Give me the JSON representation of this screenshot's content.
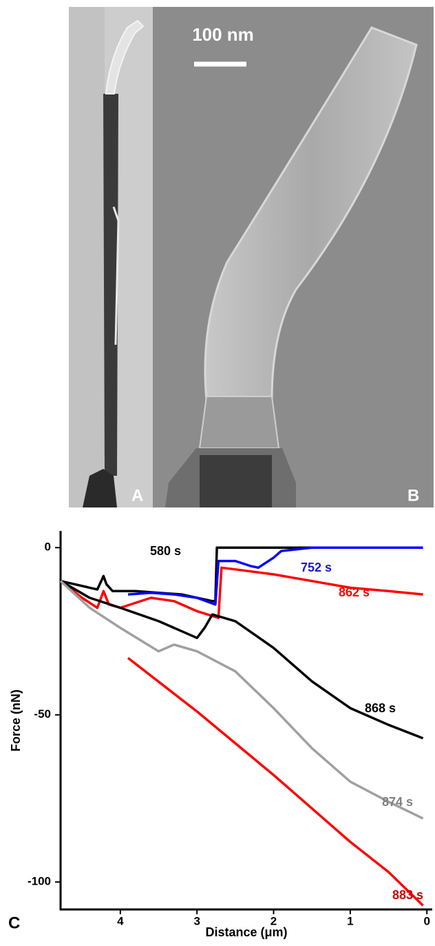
{
  "images": {
    "a_label": "A",
    "b_label": "B",
    "scale_bar": "100 nm"
  },
  "chart_data": {
    "type": "line",
    "panel_label": "C",
    "x_label": "Distance (μm)",
    "y_label": "Force (nN)",
    "xlim": [
      4.78,
      -0.07
    ],
    "ylim": [
      -108,
      5
    ],
    "xticks": [
      4,
      3,
      2,
      1,
      0
    ],
    "yticks": [
      0,
      -50,
      -100
    ],
    "series": [
      {
        "name": "580 s",
        "color": "#000000",
        "label_color": "#000000",
        "x": [
          4.78,
          4.3,
          4.22,
          4.18,
          4.1,
          3.8,
          3.5,
          3.2,
          3.0,
          2.8,
          2.76,
          2.74,
          2.5,
          2.0,
          1.5
        ],
        "values": [
          -10,
          -12.5,
          -8.5,
          -11,
          -13,
          -13,
          -13.5,
          -14,
          -15,
          -16,
          -16,
          0,
          0,
          0,
          0
        ]
      },
      {
        "name": "752 s",
        "color": "#0000ff",
        "label_color": "#1a1acc",
        "x": [
          3.9,
          3.6,
          3.3,
          3.0,
          2.76,
          2.72,
          2.5,
          2.3,
          2.2,
          2.0,
          1.9,
          1.5,
          1.0,
          0.5,
          0.05
        ],
        "values": [
          -14,
          -13.5,
          -14,
          -15,
          -17,
          -4,
          -4,
          -5.5,
          -6,
          -3,
          -1,
          0,
          0,
          0,
          0
        ]
      },
      {
        "name": "862 s",
        "color": "#ff0000",
        "label_color": "#ff0000",
        "x": [
          4.78,
          4.5,
          4.3,
          4.22,
          4.15,
          4.0,
          3.6,
          3.3,
          3.0,
          2.72,
          2.68,
          2.5,
          2.0,
          1.5,
          1.0,
          0.5,
          0.05
        ],
        "values": [
          -10,
          -15,
          -18,
          -13,
          -17,
          -18,
          -15,
          -16,
          -19,
          -21,
          -6,
          -6.5,
          -8,
          -10,
          -12,
          -13,
          -14
        ]
      },
      {
        "name": "868 s",
        "color": "#000000",
        "label_color": "#000000",
        "x": [
          4.78,
          4.4,
          4.0,
          3.5,
          3.0,
          2.9,
          2.8,
          2.5,
          2.0,
          1.5,
          1.0,
          0.5,
          0.05
        ],
        "values": [
          -10,
          -15,
          -18,
          -22,
          -27,
          -24,
          -20,
          -22,
          -30,
          -40,
          -48,
          -53,
          -57
        ]
      },
      {
        "name": "874 s",
        "color": "#a0a0a0",
        "label_color": "#808080",
        "x": [
          4.78,
          4.4,
          4.0,
          3.5,
          3.3,
          3.0,
          2.5,
          2.0,
          1.5,
          1.0,
          0.5,
          0.05
        ],
        "values": [
          -10,
          -18,
          -24,
          -31,
          -29,
          -31,
          -37,
          -48,
          -60,
          -70,
          -76,
          -81
        ]
      },
      {
        "name": "883 s",
        "color": "#ff0000",
        "label_color": "#cc0000",
        "x": [
          3.9,
          3.0,
          2.0,
          1.0,
          0.5,
          0.05
        ],
        "values": [
          -33,
          -49,
          -68,
          -88,
          -97,
          -107
        ]
      }
    ]
  }
}
